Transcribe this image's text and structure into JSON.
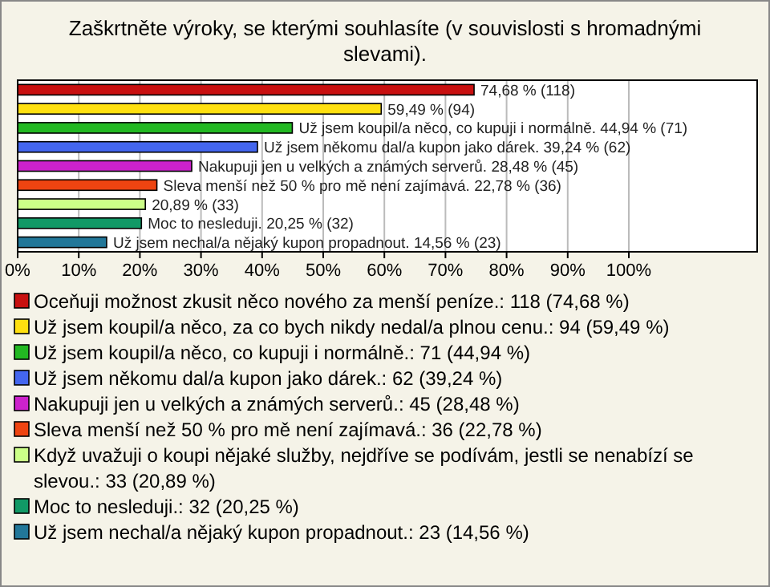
{
  "chart_data": {
    "type": "bar",
    "orientation": "horizontal",
    "title": "Zaškrtněte výroky, se kterými souhlasíte (v souvislosti s hromadnými slevami).",
    "categories": [
      null,
      null,
      null,
      null,
      null,
      null,
      null,
      null,
      null
    ],
    "series": [
      {
        "name": "Oceňuji možnost zkusit něco nového za menší peníze.: 118 (74,68 %)",
        "color": "#c81010",
        "values": [
          74.68,
          null,
          null,
          null,
          null,
          null,
          null,
          null,
          null
        ],
        "value_labels": [
          "74,68 % (118)",
          null,
          null,
          null,
          null,
          null,
          null,
          null,
          null
        ]
      },
      {
        "name": "Už jsem koupil/a něco, za co bych nikdy nedal/a plnou cenu.: 94 (59,49 %)",
        "color": "#ffe010",
        "values": [
          null,
          59.49,
          null,
          null,
          null,
          null,
          null,
          null,
          null
        ],
        "value_labels": [
          null,
          "59,49 % (94)",
          null,
          null,
          null,
          null,
          null,
          null,
          null
        ]
      },
      {
        "name": "Už jsem koupil/a něco, co kupuji i normálně.: 71 (44,94 %)",
        "color": "#22b822",
        "values": [
          null,
          null,
          44.94,
          null,
          null,
          null,
          null,
          null,
          null
        ],
        "value_labels": [
          null,
          null,
          "Už jsem koupil/a něco, co kupuji i normálně. 44,94 % (71)",
          null,
          null,
          null,
          null,
          null,
          null
        ]
      },
      {
        "name": "Už jsem někomu dal/a kupon jako dárek.: 62 (39,24 %)",
        "color": "#4466ee",
        "values": [
          null,
          null,
          null,
          39.24,
          null,
          null,
          null,
          null,
          null
        ],
        "value_labels": [
          null,
          null,
          null,
          "Už jsem někomu dal/a kupon jako dárek. 39,24 % (62)",
          null,
          null,
          null,
          null,
          null
        ]
      },
      {
        "name": "Nakupuji jen u velkých a známých serverů.: 45 (28,48 %)",
        "color": "#cc22cc",
        "values": [
          null,
          null,
          null,
          null,
          28.48,
          null,
          null,
          null,
          null
        ],
        "value_labels": [
          null,
          null,
          null,
          null,
          "Nakupuji jen u velkých a známých serverů. 28,48 % (45)",
          null,
          null,
          null,
          null
        ]
      },
      {
        "name": "Sleva menší než 50 % pro mě není zajímavá.: 36 (22,78 %)",
        "color": "#ee4411",
        "values": [
          null,
          null,
          null,
          null,
          null,
          22.78,
          null,
          null,
          null
        ],
        "value_labels": [
          null,
          null,
          null,
          null,
          null,
          "Sleva menší než 50 % pro mě není zajímavá. 22,78 % (36)",
          null,
          null,
          null
        ]
      },
      {
        "name": "Když uvažuji o koupi nějaké služby, nejdříve se podívám, jestli se nenabízí se slevou.: 33 (20,89 %)",
        "color": "#ccff88",
        "values": [
          null,
          null,
          null,
          null,
          null,
          null,
          20.89,
          null,
          null
        ],
        "value_labels": [
          null,
          null,
          null,
          null,
          null,
          null,
          "20,89 % (33)",
          null,
          null
        ]
      },
      {
        "name": "Moc to nesleduji.: 32 (20,25 %)",
        "color": "#119966",
        "values": [
          null,
          null,
          null,
          null,
          null,
          null,
          null,
          20.25,
          null
        ],
        "value_labels": [
          null,
          null,
          null,
          null,
          null,
          null,
          null,
          "Moc to nesleduji. 20,25 % (32)",
          null
        ]
      },
      {
        "name": "Už jsem nechal/a nějaký kupon propadnout.: 23 (14,56 %)",
        "color": "#227799",
        "values": [
          null,
          null,
          null,
          null,
          null,
          null,
          null,
          null,
          14.56
        ],
        "value_labels": [
          null,
          null,
          null,
          null,
          null,
          null,
          null,
          null,
          "Už jsem nechal/a nějaký kupon propadnout. 14,56 % (23)"
        ]
      }
    ],
    "xlim": [
      0,
      121
    ],
    "xticks": [
      {
        "value": 0,
        "label": "0%"
      },
      {
        "value": 10,
        "label": "10%"
      },
      {
        "value": 20,
        "label": "20%"
      },
      {
        "value": 30,
        "label": "30%"
      },
      {
        "value": 40,
        "label": "40%"
      },
      {
        "value": 50,
        "label": "50%"
      },
      {
        "value": 60,
        "label": "60%"
      },
      {
        "value": 70,
        "label": "70%"
      },
      {
        "value": 80,
        "label": "80%"
      },
      {
        "value": 90,
        "label": "90%"
      },
      {
        "value": 100,
        "label": "100%"
      }
    ],
    "grid": "x",
    "legend": "bottom",
    "tick_labels": "x"
  }
}
